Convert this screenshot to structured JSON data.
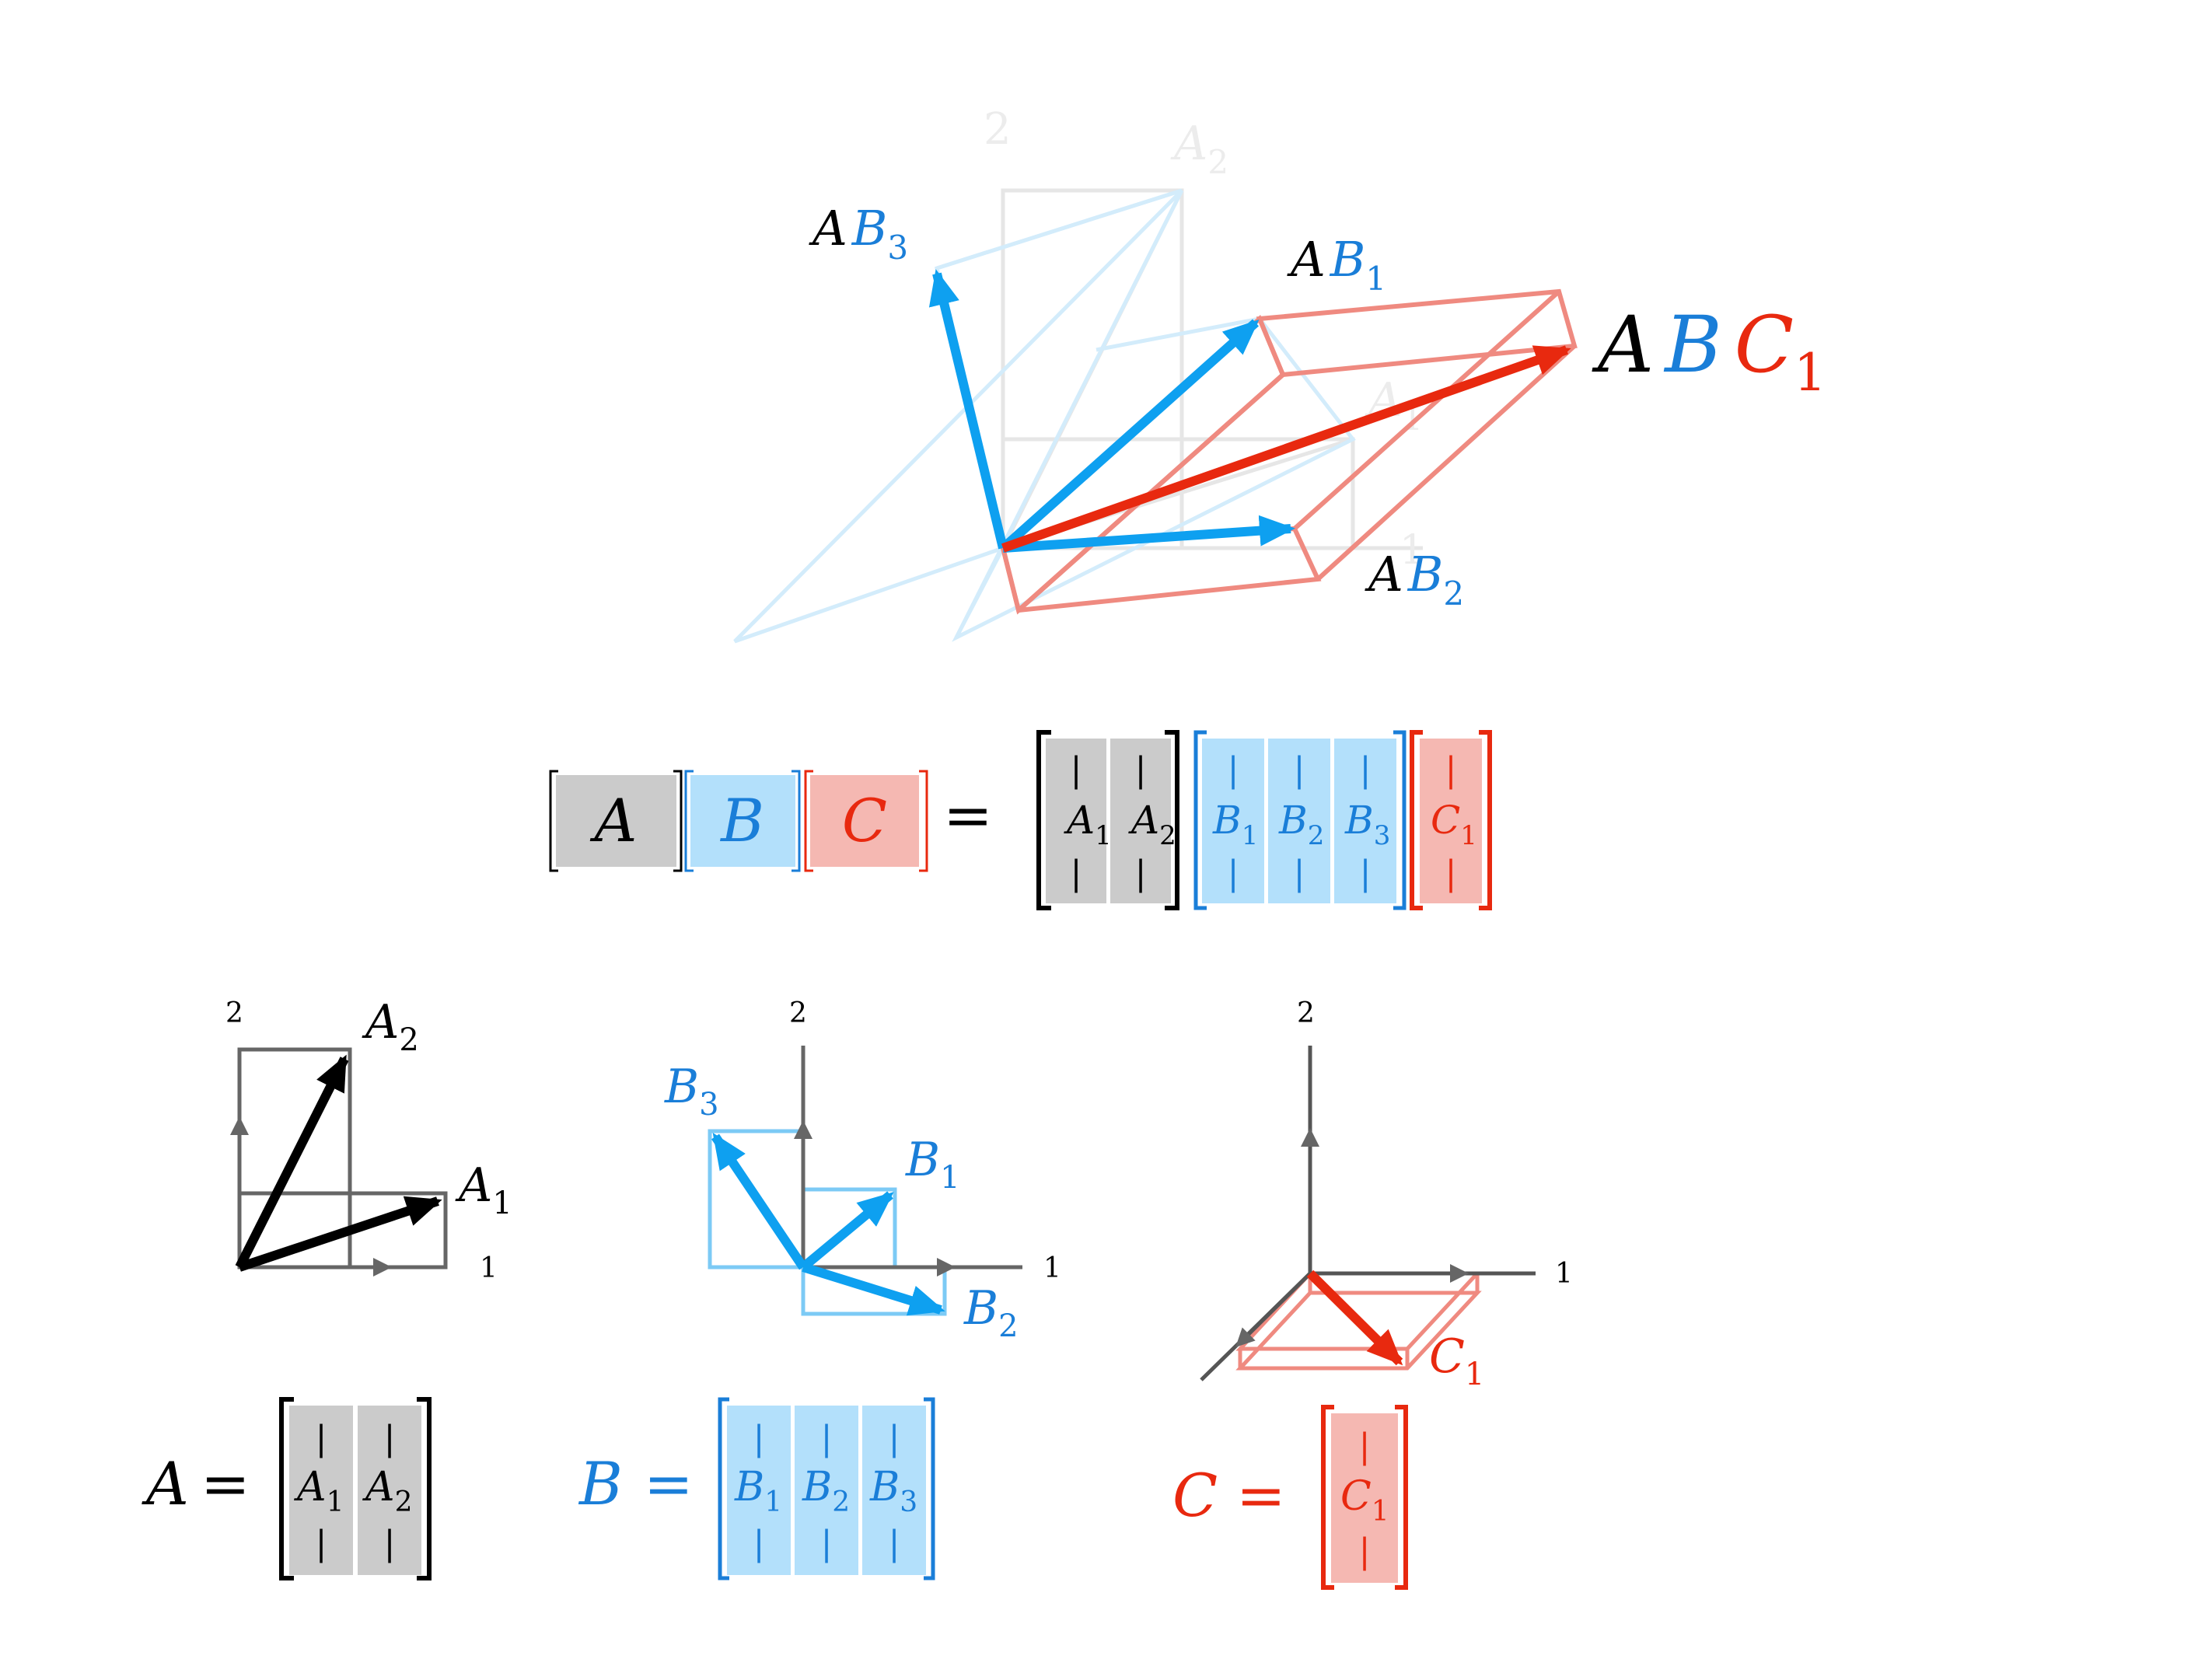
{
  "colors": {
    "black": "#000000",
    "axis": "#555555",
    "blue": "#0ea0f0",
    "blue_dark": "#1a7ed8",
    "blue_fill": "#b3e0fb",
    "red": "#e8290f",
    "red_light": "#ef8a80",
    "red_fill": "#f5b8b2",
    "gray_fill": "#cbcbcb"
  },
  "top": {
    "faint_axis_2": "2",
    "faint_axis_1": "1",
    "faint_A2": {
      "base": "A",
      "sub": "2"
    },
    "faint_A1": {
      "base": "A",
      "sub": "1"
    },
    "AB3": {
      "a": "A",
      "b": "B",
      "sub": "3"
    },
    "AB1": {
      "a": "A",
      "b": "B",
      "sub": "1"
    },
    "AB2": {
      "a": "A",
      "b": "B",
      "sub": "2"
    },
    "ABC1": {
      "a": "A",
      "b": "B",
      "c": "C",
      "sub": "1"
    }
  },
  "equation": {
    "A": "A",
    "B": "B",
    "C": "C",
    "equals": "=",
    "bar": "|",
    "A_cols": [
      {
        "base": "A",
        "sub": "1"
      },
      {
        "base": "A",
        "sub": "2"
      }
    ],
    "B_cols": [
      {
        "base": "B",
        "sub": "1"
      },
      {
        "base": "B",
        "sub": "2"
      },
      {
        "base": "B",
        "sub": "3"
      }
    ],
    "C_cols": [
      {
        "base": "C",
        "sub": "1"
      }
    ]
  },
  "panels": {
    "axis_1": "1",
    "axis_2": "2",
    "A_panel": {
      "A1": {
        "base": "A",
        "sub": "1"
      },
      "A2": {
        "base": "A",
        "sub": "2"
      }
    },
    "B_panel": {
      "B1": {
        "base": "B",
        "sub": "1"
      },
      "B2": {
        "base": "B",
        "sub": "2"
      },
      "B3": {
        "base": "B",
        "sub": "3"
      }
    },
    "C_panel": {
      "C1": {
        "base": "C",
        "sub": "1"
      }
    }
  },
  "defs": {
    "A_name": "A",
    "B_name": "B",
    "C_name": "C",
    "equals": "=",
    "bar": "|"
  }
}
